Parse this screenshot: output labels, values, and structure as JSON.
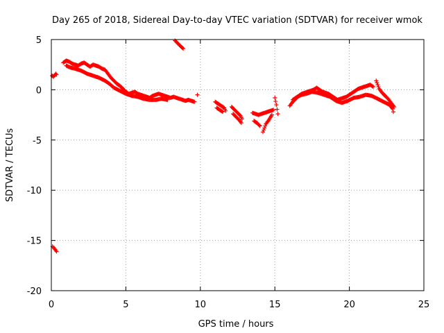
{
  "chart_data": {
    "type": "scatter",
    "title": "Day 265 of 2018, Sidereal Day-to-day VTEC variation (SDTVAR) for receiver wmok",
    "xlabel": "GPS time / hours",
    "ylabel": "SDTVAR / TECUs",
    "xlim": [
      0,
      25
    ],
    "ylim": [
      -20,
      5
    ],
    "xticks": [
      0,
      5,
      10,
      15,
      20,
      25
    ],
    "yticks": [
      5,
      0,
      -5,
      -10,
      -15,
      -20
    ],
    "grid": true,
    "marker": "plus",
    "color": "#ff0000",
    "series": [
      {
        "name": "SDTVAR",
        "segments": [
          [
            [
              0.05,
              1.4
            ],
            [
              0.15,
              1.3
            ],
            [
              0.25,
              1.5
            ],
            [
              0.3,
              1.6
            ],
            [
              0.35,
              1.5
            ]
          ],
          [
            [
              0.08,
              -15.6
            ],
            [
              0.15,
              -15.7
            ],
            [
              0.25,
              -15.9
            ],
            [
              0.35,
              -16.1
            ]
          ],
          [
            [
              0.8,
              2.7
            ],
            [
              1.0,
              2.9
            ],
            [
              1.2,
              2.8
            ],
            [
              1.4,
              2.6
            ],
            [
              1.6,
              2.5
            ],
            [
              1.8,
              2.4
            ],
            [
              2.0,
              2.6
            ],
            [
              2.2,
              2.7
            ],
            [
              2.4,
              2.5
            ],
            [
              2.6,
              2.3
            ],
            [
              2.8,
              2.5
            ],
            [
              3.0,
              2.4
            ],
            [
              3.2,
              2.3
            ],
            [
              3.4,
              2.1
            ],
            [
              3.6,
              2.0
            ],
            [
              3.8,
              1.6
            ],
            [
              4.0,
              1.2
            ],
            [
              4.2,
              0.9
            ],
            [
              4.4,
              0.6
            ],
            [
              4.6,
              0.4
            ],
            [
              4.8,
              0.1
            ],
            [
              5.0,
              -0.2
            ],
            [
              5.2,
              -0.4
            ],
            [
              5.4,
              -0.3
            ],
            [
              5.6,
              -0.2
            ],
            [
              5.8,
              -0.4
            ],
            [
              6.0,
              -0.5
            ],
            [
              6.2,
              -0.6
            ],
            [
              6.4,
              -0.7
            ],
            [
              6.6,
              -0.8
            ],
            [
              6.8,
              -0.6
            ],
            [
              7.0,
              -0.5
            ],
            [
              7.2,
              -0.4
            ],
            [
              7.4,
              -0.5
            ],
            [
              7.6,
              -0.6
            ],
            [
              7.8,
              -0.7
            ],
            [
              8.0,
              -0.8
            ],
            [
              8.2,
              -0.7
            ],
            [
              8.4,
              -0.8
            ],
            [
              8.6,
              -0.9
            ],
            [
              8.8,
              -1.0
            ],
            [
              9.0,
              -1.1
            ],
            [
              9.2,
              -1.0
            ],
            [
              9.4,
              -1.1
            ],
            [
              9.6,
              -1.2
            ]
          ],
          [
            [
              1.0,
              2.4
            ],
            [
              1.3,
              2.2
            ],
            [
              1.6,
              2.1
            ],
            [
              2.0,
              1.9
            ],
            [
              2.4,
              1.6
            ],
            [
              2.8,
              1.4
            ],
            [
              3.2,
              1.2
            ],
            [
              3.6,
              0.9
            ],
            [
              3.9,
              0.6
            ],
            [
              4.2,
              0.2
            ],
            [
              4.6,
              -0.1
            ],
            [
              5.0,
              -0.4
            ],
            [
              5.4,
              -0.6
            ],
            [
              5.8,
              -0.7
            ],
            [
              6.2,
              -0.9
            ],
            [
              6.6,
              -1.0
            ],
            [
              7.0,
              -1.0
            ],
            [
              7.4,
              -0.9
            ],
            [
              7.8,
              -1.0
            ]
          ],
          [
            [
              8.3,
              4.9
            ],
            [
              8.5,
              4.6
            ],
            [
              8.7,
              4.3
            ],
            [
              8.85,
              4.1
            ]
          ],
          [
            [
              9.8,
              -0.5
            ]
          ],
          [
            [
              11.0,
              -1.2
            ],
            [
              11.2,
              -1.4
            ],
            [
              11.4,
              -1.6
            ],
            [
              11.6,
              -1.8
            ],
            [
              11.7,
              -2.1
            ]
          ],
          [
            [
              11.1,
              -1.8
            ],
            [
              11.3,
              -2.0
            ],
            [
              11.5,
              -2.2
            ]
          ],
          [
            [
              12.1,
              -1.7
            ],
            [
              12.3,
              -2.0
            ],
            [
              12.5,
              -2.3
            ],
            [
              12.7,
              -2.6
            ],
            [
              12.8,
              -2.9
            ]
          ],
          [
            [
              12.2,
              -2.4
            ],
            [
              12.4,
              -2.7
            ],
            [
              12.6,
              -3.0
            ],
            [
              12.75,
              -3.3
            ]
          ],
          [
            [
              13.5,
              -2.3
            ],
            [
              13.7,
              -2.4
            ],
            [
              13.9,
              -2.5
            ],
            [
              14.1,
              -2.4
            ],
            [
              14.3,
              -2.3
            ],
            [
              14.5,
              -2.2
            ],
            [
              14.7,
              -2.1
            ],
            [
              14.9,
              -2.0
            ]
          ],
          [
            [
              13.6,
              -3.1
            ],
            [
              13.8,
              -3.3
            ],
            [
              14.0,
              -3.6
            ]
          ],
          [
            [
              14.2,
              -4.2
            ],
            [
              14.4,
              -3.4
            ],
            [
              14.6,
              -3.0
            ],
            [
              14.8,
              -2.5
            ]
          ],
          [
            [
              15.0,
              -0.8
            ],
            [
              15.1,
              -1.5
            ],
            [
              15.2,
              -2.4
            ]
          ],
          [
            [
              16.0,
              -1.6
            ],
            [
              16.2,
              -1.2
            ],
            [
              16.4,
              -0.9
            ],
            [
              16.6,
              -0.6
            ],
            [
              16.8,
              -0.4
            ],
            [
              17.0,
              -0.3
            ],
            [
              17.2,
              -0.2
            ],
            [
              17.4,
              -0.1
            ],
            [
              17.6,
              0.0
            ],
            [
              17.8,
              0.2
            ],
            [
              18.0,
              0.0
            ],
            [
              18.2,
              -0.2
            ],
            [
              18.4,
              -0.3
            ],
            [
              18.6,
              -0.4
            ],
            [
              18.8,
              -0.6
            ],
            [
              19.0,
              -0.8
            ],
            [
              19.2,
              -1.0
            ],
            [
              19.4,
              -0.9
            ],
            [
              19.6,
              -0.8
            ],
            [
              19.8,
              -0.7
            ],
            [
              20.0,
              -0.5
            ],
            [
              20.2,
              -0.3
            ],
            [
              20.4,
              -0.1
            ],
            [
              20.6,
              0.1
            ],
            [
              20.8,
              0.2
            ],
            [
              21.0,
              0.3
            ],
            [
              21.2,
              0.4
            ],
            [
              21.4,
              0.5
            ],
            [
              21.6,
              0.3
            ]
          ],
          [
            [
              16.2,
              -1.0
            ],
            [
              16.5,
              -0.7
            ],
            [
              16.8,
              -0.5
            ],
            [
              17.1,
              -0.4
            ],
            [
              17.5,
              -0.2
            ],
            [
              17.9,
              -0.3
            ],
            [
              18.3,
              -0.5
            ],
            [
              18.7,
              -0.7
            ],
            [
              19.1,
              -1.1
            ],
            [
              19.5,
              -1.3
            ],
            [
              19.9,
              -1.1
            ],
            [
              20.3,
              -0.8
            ],
            [
              20.7,
              -0.7
            ],
            [
              21.1,
              -0.5
            ],
            [
              21.5,
              -0.6
            ],
            [
              21.9,
              -0.9
            ],
            [
              22.3,
              -1.2
            ],
            [
              22.7,
              -1.5
            ],
            [
              22.9,
              -1.9
            ]
          ],
          [
            [
              21.8,
              0.9
            ],
            [
              21.9,
              0.5
            ],
            [
              22.0,
              0.1
            ],
            [
              22.2,
              -0.3
            ],
            [
              22.4,
              -0.6
            ],
            [
              22.6,
              -0.9
            ],
            [
              22.8,
              -1.3
            ],
            [
              23.0,
              -1.7
            ],
            [
              22.95,
              -2.2
            ]
          ]
        ]
      }
    ]
  }
}
